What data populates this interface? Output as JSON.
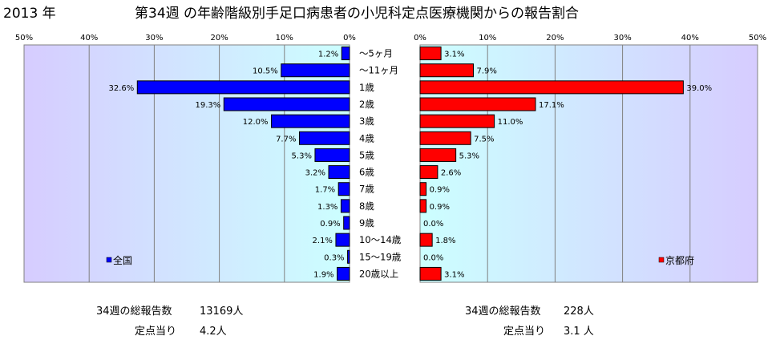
{
  "header": {
    "year": "2013 年",
    "title": "第34週 の年齢階級別手足口病患者の小児科定点医療機関からの報告割合"
  },
  "chart_data": {
    "type": "bar",
    "categories": [
      "～5ヶ月",
      "～11ヶ月",
      "1歳",
      "2歳",
      "3歳",
      "4歳",
      "5歳",
      "6歳",
      "7歳",
      "8歳",
      "9歳",
      "10～14歳",
      "15～19歳",
      "20歳以上"
    ],
    "series": [
      {
        "name": "全国",
        "color": "#0000ff",
        "values": [
          1.2,
          10.5,
          32.6,
          19.3,
          12.0,
          7.7,
          5.3,
          3.2,
          1.7,
          1.3,
          0.9,
          2.1,
          0.3,
          1.9
        ],
        "labels": [
          "1.2%",
          "10.5%",
          "32.6%",
          "19.3%",
          "12.0%",
          "7.7%",
          "5.3%",
          "3.2%",
          "1.7%",
          "1.3%",
          "0.9%",
          "2.1%",
          "0.3%",
          "1.9%"
        ]
      },
      {
        "name": "京都府",
        "color": "#ff0000",
        "values": [
          3.1,
          7.9,
          39.0,
          17.1,
          11.0,
          7.5,
          5.3,
          2.6,
          0.9,
          0.9,
          0.0,
          1.8,
          0.0,
          3.1
        ],
        "labels": [
          "3.1%",
          "7.9%",
          "39.0%",
          "17.1%",
          "11.0%",
          "7.5%",
          "5.3%",
          "2.6%",
          "0.9%",
          "0.9%",
          "0.0%",
          "1.8%",
          "0.0%",
          "3.1%"
        ]
      }
    ],
    "xlim": [
      0,
      50
    ],
    "tick_values": [
      50,
      40,
      30,
      20,
      10,
      0
    ],
    "tick_labels": [
      "50%",
      "40%",
      "30%",
      "20%",
      "10%",
      "0%"
    ],
    "grid": true,
    "legend_placement": "bottom-inside"
  },
  "stats": {
    "national_total_label": "34週の総報告数",
    "national_total_value": "13169人",
    "national_per_label": "定点当り",
    "national_per_value": "4.2人",
    "kyoto_total_label": "34週の総報告数",
    "kyoto_total_value": "228人",
    "kyoto_per_label": "定点当り",
    "kyoto_per_value": "3.1 人"
  }
}
